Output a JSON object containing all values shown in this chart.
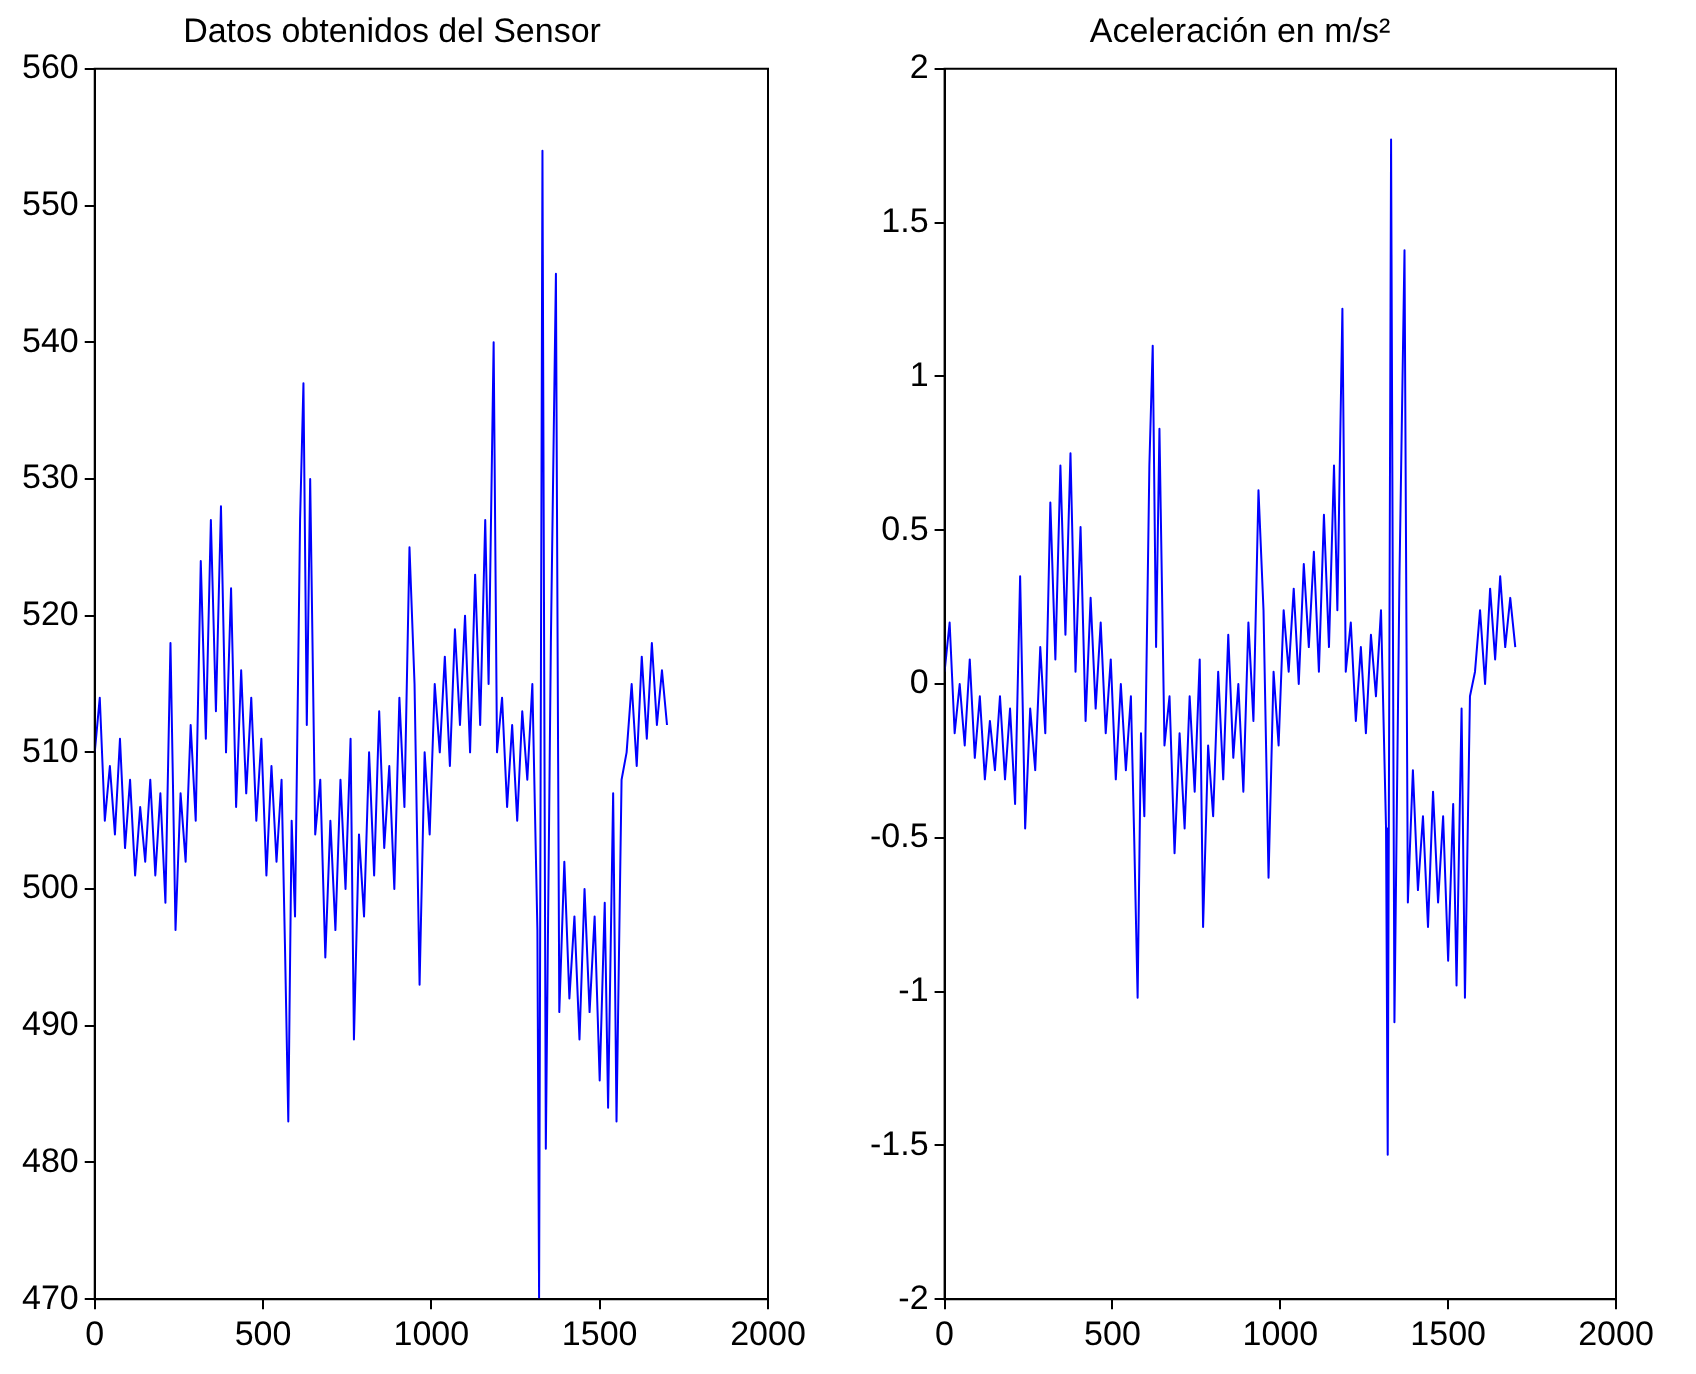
{
  "chart_data": [
    {
      "type": "line",
      "title": "Datos obtenidos del Sensor",
      "color": "#0000ff",
      "xlim": [
        0,
        2000
      ],
      "xticks": [
        0,
        500,
        1000,
        1500,
        2000
      ],
      "ylim": [
        470,
        560
      ],
      "yticks": [
        470,
        480,
        490,
        500,
        510,
        520,
        530,
        540,
        550,
        560
      ],
      "x": [
        0,
        15,
        30,
        45,
        60,
        75,
        90,
        105,
        120,
        135,
        150,
        165,
        180,
        195,
        210,
        225,
        240,
        255,
        270,
        285,
        300,
        315,
        330,
        345,
        360,
        375,
        390,
        405,
        420,
        435,
        450,
        465,
        480,
        495,
        510,
        525,
        540,
        555,
        565,
        575,
        585,
        595,
        610,
        620,
        630,
        640,
        655,
        670,
        685,
        700,
        715,
        730,
        745,
        760,
        770,
        785,
        800,
        815,
        830,
        845,
        860,
        875,
        890,
        905,
        920,
        935,
        950,
        965,
        980,
        995,
        1010,
        1025,
        1040,
        1055,
        1070,
        1085,
        1100,
        1115,
        1130,
        1145,
        1160,
        1170,
        1185,
        1195,
        1210,
        1225,
        1240,
        1255,
        1270,
        1285,
        1300,
        1315,
        1320,
        1330,
        1340,
        1355,
        1370,
        1380,
        1395,
        1410,
        1425,
        1440,
        1455,
        1470,
        1485,
        1500,
        1515,
        1525,
        1540,
        1550,
        1565,
        1580,
        1595,
        1610,
        1625,
        1640,
        1655,
        1670,
        1685,
        1700
      ],
      "values": [
        510,
        514,
        505,
        509,
        504,
        511,
        503,
        508,
        501,
        506,
        502,
        508,
        501,
        507,
        499,
        518,
        497,
        507,
        502,
        512,
        505,
        524,
        511,
        527,
        513,
        528,
        510,
        522,
        506,
        516,
        507,
        514,
        505,
        511,
        501,
        509,
        502,
        508,
        496,
        483,
        505,
        498,
        527,
        537,
        512,
        530,
        504,
        508,
        495,
        505,
        497,
        508,
        500,
        511,
        489,
        504,
        498,
        510,
        501,
        513,
        503,
        509,
        500,
        514,
        506,
        525,
        515,
        493,
        510,
        504,
        515,
        510,
        517,
        509,
        519,
        512,
        520,
        510,
        523,
        512,
        527,
        515,
        540,
        510,
        514,
        506,
        512,
        505,
        513,
        508,
        515,
        497,
        470,
        554,
        481,
        518,
        545,
        491,
        502,
        492,
        498,
        489,
        500,
        491,
        498,
        486,
        499,
        484,
        507,
        483,
        508,
        510,
        515,
        509,
        517,
        511,
        518,
        512,
        516,
        512
      ]
    },
    {
      "type": "line",
      "title": "Aceleración en m/s²",
      "color": "#0000ff",
      "xlim": [
        0,
        2000
      ],
      "xticks": [
        0,
        500,
        1000,
        1500,
        2000
      ],
      "ylim": [
        -2,
        2
      ],
      "yticks": [
        -2,
        -1.5,
        -1,
        -0.5,
        0,
        0.5,
        1,
        1.5,
        2
      ],
      "x": [
        0,
        15,
        30,
        45,
        60,
        75,
        90,
        105,
        120,
        135,
        150,
        165,
        180,
        195,
        210,
        225,
        240,
        255,
        270,
        285,
        300,
        315,
        330,
        345,
        360,
        375,
        390,
        405,
        420,
        435,
        450,
        465,
        480,
        495,
        510,
        525,
        540,
        555,
        565,
        575,
        585,
        595,
        610,
        620,
        630,
        640,
        655,
        670,
        685,
        700,
        715,
        730,
        745,
        760,
        770,
        785,
        800,
        815,
        830,
        845,
        860,
        875,
        890,
        905,
        920,
        935,
        950,
        965,
        980,
        995,
        1010,
        1025,
        1040,
        1055,
        1070,
        1085,
        1100,
        1115,
        1130,
        1145,
        1160,
        1170,
        1185,
        1195,
        1210,
        1225,
        1240,
        1255,
        1270,
        1285,
        1300,
        1315,
        1320,
        1330,
        1340,
        1355,
        1370,
        1380,
        1395,
        1410,
        1425,
        1440,
        1455,
        1470,
        1485,
        1500,
        1515,
        1525,
        1540,
        1550,
        1565,
        1580,
        1595,
        1610,
        1625,
        1640,
        1655,
        1670,
        1685,
        1700
      ],
      "values": [
        0.04,
        0.2,
        -0.16,
        0,
        -0.2,
        0.08,
        -0.24,
        -0.04,
        -0.31,
        -0.12,
        -0.28,
        -0.04,
        -0.31,
        -0.08,
        -0.39,
        0.35,
        -0.47,
        -0.08,
        -0.28,
        0.12,
        -0.16,
        0.59,
        0.08,
        0.71,
        0.16,
        0.75,
        0.04,
        0.51,
        -0.12,
        0.28,
        -0.08,
        0.2,
        -0.16,
        0.08,
        -0.31,
        0,
        -0.28,
        -0.04,
        -0.51,
        -1.02,
        -0.16,
        -0.43,
        0.71,
        1.1,
        0.12,
        0.83,
        -0.2,
        -0.04,
        -0.55,
        -0.16,
        -0.47,
        -0.04,
        -0.35,
        0.08,
        -0.79,
        -0.2,
        -0.43,
        0.04,
        -0.31,
        0.16,
        -0.24,
        0,
        -0.35,
        0.2,
        -0.12,
        0.63,
        0.24,
        -0.63,
        0.04,
        -0.2,
        0.24,
        0.04,
        0.31,
        0,
        0.39,
        0.12,
        0.43,
        0.04,
        0.55,
        0.12,
        0.71,
        0.24,
        1.22,
        0.04,
        0.2,
        -0.12,
        0.12,
        -0.16,
        0.16,
        -0.04,
        0.24,
        -0.47,
        -1.53,
        1.77,
        -1.1,
        0.35,
        1.41,
        -0.71,
        -0.28,
        -0.67,
        -0.43,
        -0.79,
        -0.35,
        -0.71,
        -0.43,
        -0.9,
        -0.39,
        -0.98,
        -0.08,
        -1.02,
        -0.04,
        0.04,
        0.24,
        0,
        0.31,
        0.08,
        0.35,
        0.12,
        0.28,
        0.12
      ]
    }
  ]
}
